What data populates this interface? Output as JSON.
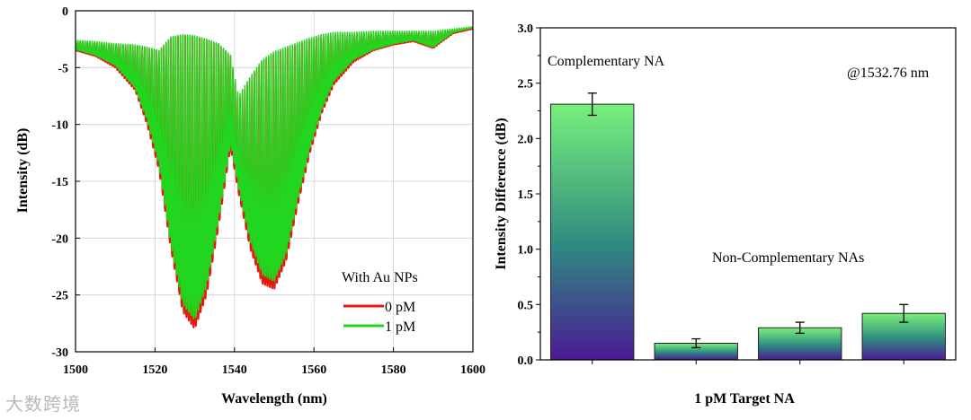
{
  "chart_data": [
    {
      "type": "line",
      "xlabel": "Wavelength (nm)",
      "ylabel": "Intensity (dB)",
      "xlim": [
        1500,
        1600
      ],
      "ylim": [
        -30,
        0
      ],
      "xticks": [
        "1500",
        "1520",
        "1540",
        "1560",
        "1580",
        "1600"
      ],
      "yticks": [
        "0",
        "-5",
        "-10",
        "-15",
        "-20",
        "-25",
        "-30"
      ],
      "legend_title": "With Au NPs",
      "legend_placement": "bottom-right",
      "series": [
        {
          "name": "0 pM",
          "color": "#e8170e",
          "envelope_x": [
            1500,
            1505,
            1510,
            1515,
            1518,
            1521,
            1524,
            1527,
            1530,
            1533,
            1536,
            1539,
            1541,
            1544,
            1547,
            1550,
            1553,
            1556,
            1559,
            1562,
            1565,
            1570,
            1575,
            1580,
            1585,
            1590,
            1595,
            1600
          ],
          "envelope_upper": [
            -2.7,
            -2.8,
            -3.0,
            -3.1,
            -3.3,
            -3.6,
            -2.4,
            -2.2,
            -2.3,
            -2.6,
            -3.0,
            -4.0,
            -8.0,
            -6.0,
            -4.5,
            -3.8,
            -3.4,
            -3.0,
            -2.6,
            -2.3,
            -2.2,
            -2.1,
            -2.0,
            -1.9,
            -1.9,
            -1.9,
            -1.7,
            -1.5
          ],
          "envelope_lower": [
            -3.5,
            -4.0,
            -5.0,
            -7.0,
            -10.0,
            -14.0,
            -21.0,
            -26.5,
            -28.0,
            -25.0,
            -19.0,
            -12.0,
            -16.0,
            -21.0,
            -24.0,
            -24.5,
            -22.0,
            -17.0,
            -12.5,
            -9.0,
            -6.5,
            -4.5,
            -3.5,
            -3.0,
            -2.7,
            -3.3,
            -2.0,
            -1.6
          ]
        },
        {
          "name": "1 pM",
          "color": "#22d61f",
          "envelope_x": [
            1500,
            1505,
            1510,
            1515,
            1518,
            1521,
            1524,
            1527,
            1530,
            1533,
            1536,
            1539,
            1541,
            1544,
            1547,
            1550,
            1553,
            1556,
            1559,
            1562,
            1565,
            1570,
            1575,
            1580,
            1585,
            1590,
            1595,
            1600
          ],
          "envelope_upper": [
            -2.6,
            -2.7,
            -2.9,
            -3.0,
            -3.2,
            -3.5,
            -2.3,
            -2.1,
            -2.2,
            -2.5,
            -2.9,
            -3.9,
            -7.5,
            -5.8,
            -4.3,
            -3.6,
            -3.2,
            -2.8,
            -2.4,
            -2.1,
            -1.9,
            -1.9,
            -1.8,
            -1.8,
            -1.8,
            -1.8,
            -1.6,
            -1.4
          ],
          "envelope_lower": [
            -3.4,
            -3.9,
            -4.8,
            -6.8,
            -9.6,
            -13.5,
            -20.5,
            -25.8,
            -27.2,
            -24.2,
            -18.4,
            -11.6,
            -15.5,
            -20.3,
            -23.2,
            -23.8,
            -21.4,
            -16.5,
            -12.1,
            -8.7,
            -6.2,
            -4.3,
            -3.4,
            -2.9,
            -2.6,
            -3.2,
            -1.9,
            -1.5
          ]
        }
      ]
    },
    {
      "type": "bar",
      "xlabel": "1 pM Target NA",
      "ylabel": "Intensity Difference (dB)",
      "ylim": [
        0,
        3.0
      ],
      "yticks": [
        "0.0",
        "0.5",
        "1.0",
        "1.5",
        "2.0",
        "2.5",
        "3.0"
      ],
      "values": [
        2.31,
        0.15,
        0.29,
        0.42
      ],
      "errors": [
        0.1,
        0.04,
        0.05,
        0.08
      ],
      "annotations": {
        "complementary": "Complementary NA",
        "wavelength": "@1532.76 nm",
        "non_complementary": "Non-Complementary NAs"
      },
      "gradient": {
        "top": "#78f07a",
        "middle": "#2f8a82",
        "bottom": "#4b1a96"
      }
    }
  ],
  "watermark": "大数跨境"
}
